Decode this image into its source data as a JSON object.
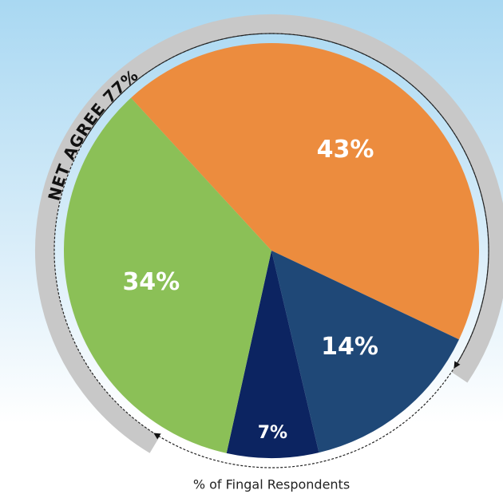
{
  "chart_data": {
    "type": "pie",
    "values": [
      43,
      14,
      7,
      34
    ],
    "value_labels": [
      "43%",
      "14%",
      "7%",
      "34%"
    ],
    "colors": [
      "#ec8c3e",
      "#1f4877",
      "#0c2461",
      "#8bc057"
    ],
    "annotation": "NET AGREE 77%",
    "caption": "% of Fingal Respondents"
  }
}
